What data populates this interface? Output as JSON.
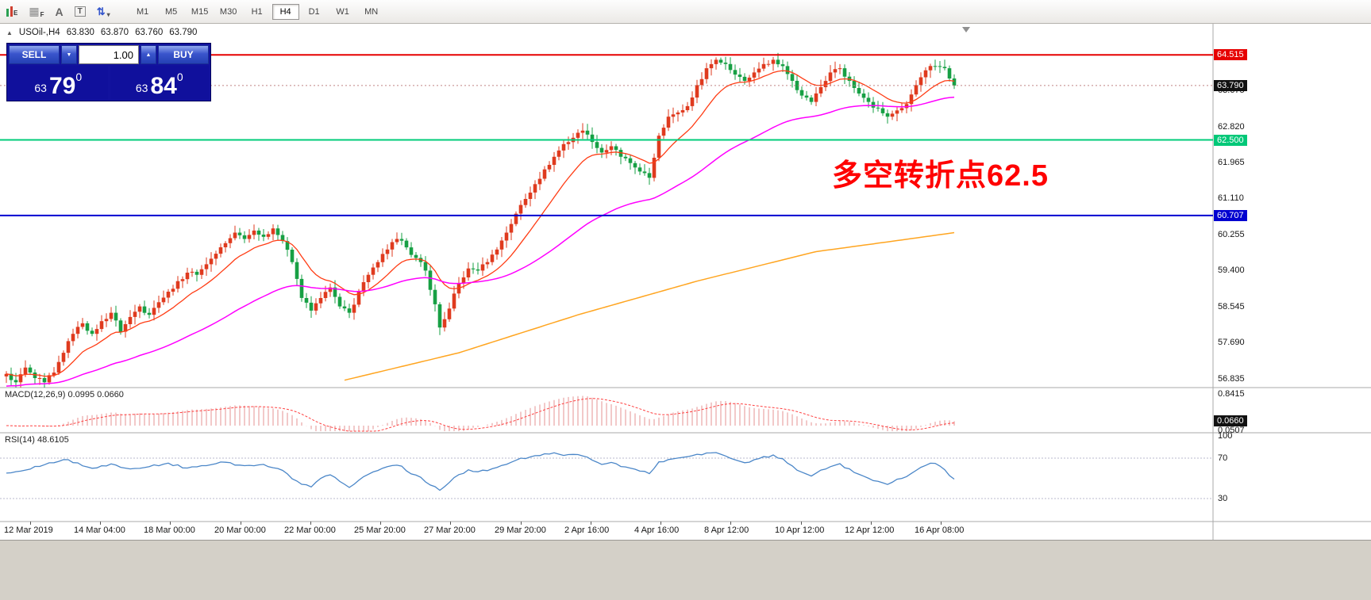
{
  "toolbar": {
    "icons": {
      "chart_sub": "E",
      "grid_sub": "F",
      "text_label": "A",
      "textbox_label": "T"
    },
    "timeframes": [
      "M1",
      "M5",
      "M15",
      "M30",
      "H1",
      "H4",
      "D1",
      "W1",
      "MN"
    ],
    "active_timeframe": "H4"
  },
  "chart": {
    "symbol_header": "USOil-,H4",
    "ohlc": {
      "open": "63.830",
      "high": "63.870",
      "low": "63.760",
      "close": "63.790"
    },
    "annotation": "多空转折点62.5",
    "y_axis_labels": [
      "63.675",
      "62.820",
      "61.965",
      "61.110",
      "60.255",
      "59.400",
      "58.545",
      "57.690",
      "56.835"
    ],
    "badges": [
      {
        "id": "resistance",
        "label": "64.515",
        "price": 64.515,
        "color": "#e60000"
      },
      {
        "id": "current-price",
        "label": "63.790",
        "price": 63.79,
        "color": "#111111"
      },
      {
        "id": "pivot",
        "label": "62.500",
        "price": 62.5,
        "color": "#00c878"
      },
      {
        "id": "support",
        "label": "60.707",
        "price": 60.707,
        "color": "#0000d0"
      }
    ],
    "time_labels": [
      "12 Mar 2019",
      "14 Mar 04:00",
      "18 Mar 00:00",
      "20 Mar 00:00",
      "22 Mar 00:00",
      "25 Mar 20:00",
      "27 Mar 20:00",
      "29 Mar 20:00",
      "2 Apr 16:00",
      "4 Apr 16:00",
      "8 Apr 12:00",
      "10 Apr 12:00",
      "12 Apr 12:00",
      "16 Apr 08:00"
    ]
  },
  "trade_panel": {
    "sell_label": "SELL",
    "buy_label": "BUY",
    "volume": "1.00",
    "sell_price_prefix": "63",
    "sell_price_main": "79",
    "sell_price_sup": "0",
    "buy_price_prefix": "63",
    "buy_price_main": "84",
    "buy_price_sup": "0"
  },
  "macd": {
    "label": "MACD(12,26,9) 0.0995 0.0660",
    "axis_top": "0.8415",
    "axis_bottom": "0.0507",
    "value_badge": "0.0660"
  },
  "rsi": {
    "label": "RSI(14) 48.6105",
    "axis": [
      "100",
      "70",
      "30"
    ]
  },
  "chart_data": {
    "type": "candlestick",
    "symbol": "USOil-",
    "timeframe": "H4",
    "bars_visible": 200,
    "visible_price_range": [
      56.5,
      64.9
    ],
    "up_color": "#df3a1e",
    "down_color": "#17a044",
    "levels": [
      {
        "price": 64.515,
        "color": "#e60000",
        "style": "solid"
      },
      {
        "price": 62.5,
        "color": "#00cc7a",
        "style": "solid"
      },
      {
        "price": 60.707,
        "color": "#0000d0",
        "style": "solid"
      },
      {
        "price": 63.79,
        "color": "#c08484",
        "style": "dashed"
      }
    ],
    "close_anchors": [
      [
        0,
        56.95
      ],
      [
        2,
        56.75
      ],
      [
        4,
        57.1
      ],
      [
        6,
        56.85
      ],
      [
        8,
        56.75
      ],
      [
        10,
        56.98
      ],
      [
        12,
        57.45
      ],
      [
        14,
        57.9
      ],
      [
        16,
        58.15
      ],
      [
        18,
        57.9
      ],
      [
        20,
        58.2
      ],
      [
        22,
        58.4
      ],
      [
        24,
        57.95
      ],
      [
        26,
        58.3
      ],
      [
        28,
        58.55
      ],
      [
        30,
        58.35
      ],
      [
        32,
        58.65
      ],
      [
        34,
        58.9
      ],
      [
        36,
        59.15
      ],
      [
        38,
        59.35
      ],
      [
        40,
        59.3
      ],
      [
        42,
        59.55
      ],
      [
        44,
        59.8
      ],
      [
        46,
        60.05
      ],
      [
        48,
        60.3
      ],
      [
        50,
        60.15
      ],
      [
        52,
        60.35
      ],
      [
        54,
        60.2
      ],
      [
        56,
        60.4
      ],
      [
        58,
        60.1
      ],
      [
        60,
        59.6
      ],
      [
        62,
        58.75
      ],
      [
        64,
        58.45
      ],
      [
        66,
        58.75
      ],
      [
        68,
        59.0
      ],
      [
        70,
        58.55
      ],
      [
        72,
        58.4
      ],
      [
        74,
        58.9
      ],
      [
        76,
        59.3
      ],
      [
        78,
        59.6
      ],
      [
        80,
        59.9
      ],
      [
        82,
        60.15
      ],
      [
        84,
        59.95
      ],
      [
        86,
        59.7
      ],
      [
        88,
        59.4
      ],
      [
        90,
        58.6
      ],
      [
        91,
        58.05
      ],
      [
        93,
        58.5
      ],
      [
        95,
        59.1
      ],
      [
        97,
        59.45
      ],
      [
        99,
        59.4
      ],
      [
        101,
        59.6
      ],
      [
        103,
        59.9
      ],
      [
        105,
        60.3
      ],
      [
        107,
        60.75
      ],
      [
        109,
        61.1
      ],
      [
        111,
        61.45
      ],
      [
        113,
        61.8
      ],
      [
        115,
        62.1
      ],
      [
        117,
        62.4
      ],
      [
        119,
        62.55
      ],
      [
        121,
        62.72
      ],
      [
        123,
        62.45
      ],
      [
        125,
        62.2
      ],
      [
        127,
        62.35
      ],
      [
        129,
        62.1
      ],
      [
        131,
        61.95
      ],
      [
        133,
        61.75
      ],
      [
        135,
        61.6
      ],
      [
        137,
        62.6
      ],
      [
        139,
        63.05
      ],
      [
        141,
        63.15
      ],
      [
        143,
        63.3
      ],
      [
        145,
        63.8
      ],
      [
        147,
        64.2
      ],
      [
        149,
        64.4
      ],
      [
        151,
        64.3
      ],
      [
        153,
        64.05
      ],
      [
        155,
        63.9
      ],
      [
        157,
        64.1
      ],
      [
        159,
        64.3
      ],
      [
        161,
        64.4
      ],
      [
        163,
        64.25
      ],
      [
        165,
        63.9
      ],
      [
        167,
        63.55
      ],
      [
        169,
        63.4
      ],
      [
        171,
        63.75
      ],
      [
        173,
        64.1
      ],
      [
        175,
        64.2
      ],
      [
        177,
        63.9
      ],
      [
        179,
        63.6
      ],
      [
        181,
        63.4
      ],
      [
        183,
        63.25
      ],
      [
        185,
        63.05
      ],
      [
        187,
        63.2
      ],
      [
        189,
        63.35
      ],
      [
        191,
        63.8
      ],
      [
        193,
        64.15
      ],
      [
        195,
        64.25
      ],
      [
        197,
        64.2
      ],
      [
        199,
        63.79
      ]
    ],
    "moving_averages": [
      {
        "name": "fast",
        "period": 13,
        "color": "#ff3c14"
      },
      {
        "name": "medium",
        "period": 55,
        "color": "#ff00ff"
      },
      {
        "name": "slow",
        "color": "#ffa520",
        "anchors": [
          [
            71,
            56.8
          ],
          [
            95,
            57.45
          ],
          [
            120,
            58.35
          ],
          [
            145,
            59.15
          ],
          [
            170,
            59.85
          ],
          [
            185,
            60.08
          ],
          [
            199,
            60.3
          ]
        ]
      }
    ],
    "macd": {
      "params": [
        12,
        26,
        9
      ],
      "histogram_color": "#e59393",
      "signal_color": "#ff4040",
      "scale_max": 0.8415,
      "last_values": [
        0.0995,
        0.066
      ]
    },
    "rsi": {
      "period": 14,
      "color": "#4a86c8",
      "levels": [
        70,
        30
      ],
      "last": 48.6105,
      "anchors": [
        [
          0,
          55
        ],
        [
          4,
          58
        ],
        [
          8,
          63
        ],
        [
          12,
          68
        ],
        [
          14,
          66
        ],
        [
          18,
          60
        ],
        [
          22,
          64
        ],
        [
          26,
          59
        ],
        [
          30,
          62
        ],
        [
          34,
          65
        ],
        [
          38,
          60
        ],
        [
          42,
          63
        ],
        [
          46,
          66
        ],
        [
          50,
          62
        ],
        [
          54,
          64
        ],
        [
          58,
          58
        ],
        [
          60,
          50
        ],
        [
          62,
          44
        ],
        [
          64,
          42
        ],
        [
          66,
          50
        ],
        [
          68,
          54
        ],
        [
          70,
          47
        ],
        [
          72,
          41
        ],
        [
          74,
          48
        ],
        [
          76,
          54
        ],
        [
          78,
          58
        ],
        [
          80,
          61
        ],
        [
          82,
          63
        ],
        [
          84,
          58
        ],
        [
          86,
          53
        ],
        [
          88,
          47
        ],
        [
          91,
          38
        ],
        [
          93,
          46
        ],
        [
          95,
          54
        ],
        [
          97,
          58
        ],
        [
          99,
          56
        ],
        [
          101,
          58
        ],
        [
          103,
          61
        ],
        [
          105,
          64
        ],
        [
          107,
          68
        ],
        [
          109,
          70
        ],
        [
          111,
          72
        ],
        [
          113,
          74
        ],
        [
          115,
          75
        ],
        [
          117,
          73
        ],
        [
          119,
          74
        ],
        [
          121,
          72
        ],
        [
          123,
          68
        ],
        [
          125,
          64
        ],
        [
          127,
          66
        ],
        [
          129,
          62
        ],
        [
          131,
          60
        ],
        [
          133,
          57
        ],
        [
          135,
          55
        ],
        [
          137,
          66
        ],
        [
          139,
          69
        ],
        [
          141,
          70
        ],
        [
          143,
          72
        ],
        [
          145,
          74
        ],
        [
          147,
          75
        ],
        [
          149,
          76
        ],
        [
          151,
          72
        ],
        [
          153,
          68
        ],
        [
          155,
          65
        ],
        [
          157,
          68
        ],
        [
          159,
          71
        ],
        [
          161,
          73
        ],
        [
          163,
          69
        ],
        [
          165,
          62
        ],
        [
          167,
          56
        ],
        [
          169,
          52
        ],
        [
          171,
          58
        ],
        [
          173,
          62
        ],
        [
          175,
          64
        ],
        [
          177,
          59
        ],
        [
          179,
          54
        ],
        [
          181,
          50
        ],
        [
          183,
          47
        ],
        [
          185,
          44
        ],
        [
          187,
          49
        ],
        [
          189,
          52
        ],
        [
          191,
          58
        ],
        [
          193,
          63
        ],
        [
          195,
          65
        ],
        [
          197,
          58
        ],
        [
          199,
          48.6
        ]
      ]
    }
  }
}
